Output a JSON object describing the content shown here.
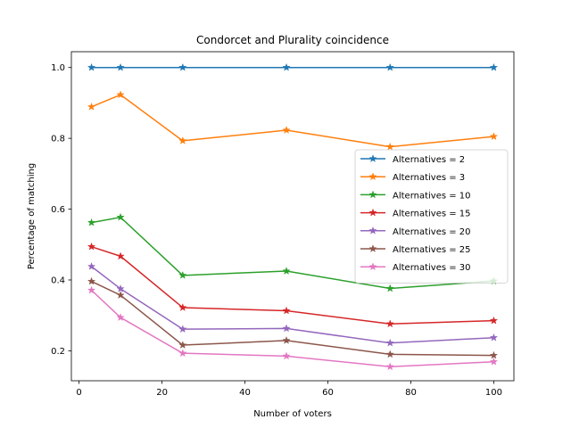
{
  "chart_data": {
    "type": "line",
    "title": "Condorcet and Plurality coincidence",
    "xlabel": "Number of voters",
    "ylabel": "Percentage of matching",
    "xlim": [
      -1.85,
      104.85
    ],
    "ylim": [
      0.1154,
      1.0446
    ],
    "xticks": [
      0,
      20,
      40,
      60,
      80,
      100
    ],
    "xtick_labels": [
      "0",
      "20",
      "40",
      "60",
      "80",
      "100"
    ],
    "yticks": [
      0.2,
      0.4,
      0.6,
      0.8,
      1.0
    ],
    "ytick_labels": [
      "0.2",
      "0.4",
      "0.6",
      "0.8",
      "1.0"
    ],
    "grid": false,
    "legend_position": "center-right",
    "marker": "star",
    "x": [
      3,
      10,
      25,
      50,
      75,
      100
    ],
    "series": [
      {
        "name": "Alternatives = 2",
        "color": "#1f77b4",
        "values": [
          1.0,
          1.0,
          1.0,
          1.0,
          1.0,
          1.0
        ]
      },
      {
        "name": "Alternatives = 3",
        "color": "#ff7f0e",
        "values": [
          0.889,
          0.923,
          0.793,
          0.823,
          0.776,
          0.805
        ]
      },
      {
        "name": "Alternatives = 10",
        "color": "#2ca02c",
        "values": [
          0.562,
          0.577,
          0.413,
          0.425,
          0.376,
          0.397
        ]
      },
      {
        "name": "Alternatives = 15",
        "color": "#d62728",
        "values": [
          0.494,
          0.467,
          0.322,
          0.313,
          0.276,
          0.285
        ]
      },
      {
        "name": "Alternatives = 20",
        "color": "#9467bd",
        "values": [
          0.438,
          0.375,
          0.261,
          0.263,
          0.222,
          0.237
        ]
      },
      {
        "name": "Alternatives = 25",
        "color": "#8c564b",
        "values": [
          0.396,
          0.357,
          0.216,
          0.229,
          0.19,
          0.187
        ]
      },
      {
        "name": "Alternatives = 30",
        "color": "#e377c2",
        "values": [
          0.371,
          0.294,
          0.193,
          0.185,
          0.155,
          0.169
        ]
      }
    ]
  }
}
